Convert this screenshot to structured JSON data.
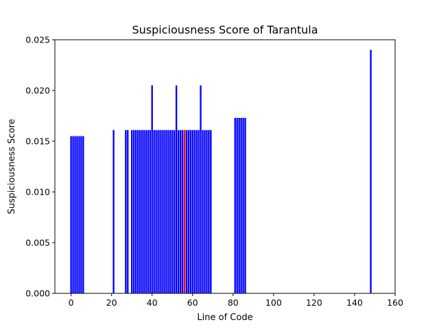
{
  "chart_data": {
    "type": "bar",
    "title": "Suspiciousness Score of Tarantula",
    "xlabel": "Line of Code",
    "ylabel": "Suspiciousness Score",
    "xlim": [
      -8,
      160
    ],
    "ylim": [
      0,
      0.025
    ],
    "xticks": [
      "0",
      "20",
      "40",
      "60",
      "80",
      "100",
      "120",
      "140",
      "160"
    ],
    "yticks": [
      "0.000",
      "0.005",
      "0.010",
      "0.015",
      "0.020",
      "0.025"
    ],
    "grid": false,
    "bar_color": "#0000ff",
    "highlight_color": "#ff0000",
    "series": [
      {
        "x": [
          0,
          1,
          2,
          3,
          4,
          5,
          6,
          21,
          27,
          28,
          30,
          31,
          32,
          33,
          34,
          35,
          36,
          37,
          38,
          39,
          40,
          41,
          42,
          43,
          44,
          45,
          46,
          47,
          48,
          49,
          50,
          51,
          52,
          53,
          54,
          55,
          56,
          57,
          58,
          59,
          60,
          61,
          62,
          63,
          64,
          65,
          66,
          67,
          68,
          69,
          81,
          82,
          83,
          84,
          85,
          86,
          148
        ],
        "values": [
          0.0155,
          0.0155,
          0.0155,
          0.0155,
          0.0155,
          0.0155,
          0.0155,
          0.0161,
          0.0161,
          0.0161,
          0.0161,
          0.0161,
          0.0161,
          0.0161,
          0.0161,
          0.0161,
          0.0161,
          0.0161,
          0.0161,
          0.0161,
          0.0205,
          0.0161,
          0.0161,
          0.0161,
          0.0161,
          0.0161,
          0.0161,
          0.0161,
          0.0161,
          0.0161,
          0.0161,
          0.0161,
          0.0205,
          0.0161,
          0.0161,
          0.0161,
          0.0161,
          0.0161,
          0.0161,
          0.0161,
          0.0161,
          0.0161,
          0.0161,
          0.0161,
          0.0205,
          0.0161,
          0.0161,
          0.0161,
          0.0161,
          0.0161,
          0.0173,
          0.0173,
          0.0173,
          0.0173,
          0.0173,
          0.0173,
          0.024
        ],
        "highlight_x": [
          56
        ]
      }
    ]
  }
}
